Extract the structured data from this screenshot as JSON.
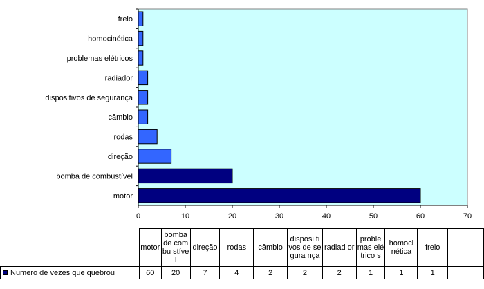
{
  "chart_data": {
    "type": "bar",
    "orientation": "horizontal",
    "categories": [
      "motor",
      "bomba de combustível",
      "direção",
      "rodas",
      "câmbio",
      "dispositivos de segurança",
      "radiador",
      "problemas elétricos",
      "homocinética",
      "freio"
    ],
    "series": [
      {
        "name": "Numero de vezes que quebrou",
        "values": [
          60,
          20,
          7,
          4,
          2,
          2,
          2,
          1,
          1,
          1
        ]
      }
    ],
    "xlim": [
      0,
      70
    ],
    "x_ticks": [
      0,
      10,
      20,
      30,
      40,
      50,
      60,
      70
    ],
    "grid": false,
    "plot_background": "#ccffff",
    "colors": {
      "dark_bars": "#000080",
      "light_bars": "#3366ff"
    },
    "table": {
      "headers": [
        "motor",
        "bomba de combu stível",
        "direção",
        "rodas",
        "câmbio",
        "disposi tivos de segura nça",
        "radiad or",
        "proble mas elétrico s",
        "homoci nética",
        "freio"
      ],
      "values": [
        60,
        20,
        7,
        4,
        2,
        2,
        2,
        1,
        1,
        1
      ]
    }
  }
}
